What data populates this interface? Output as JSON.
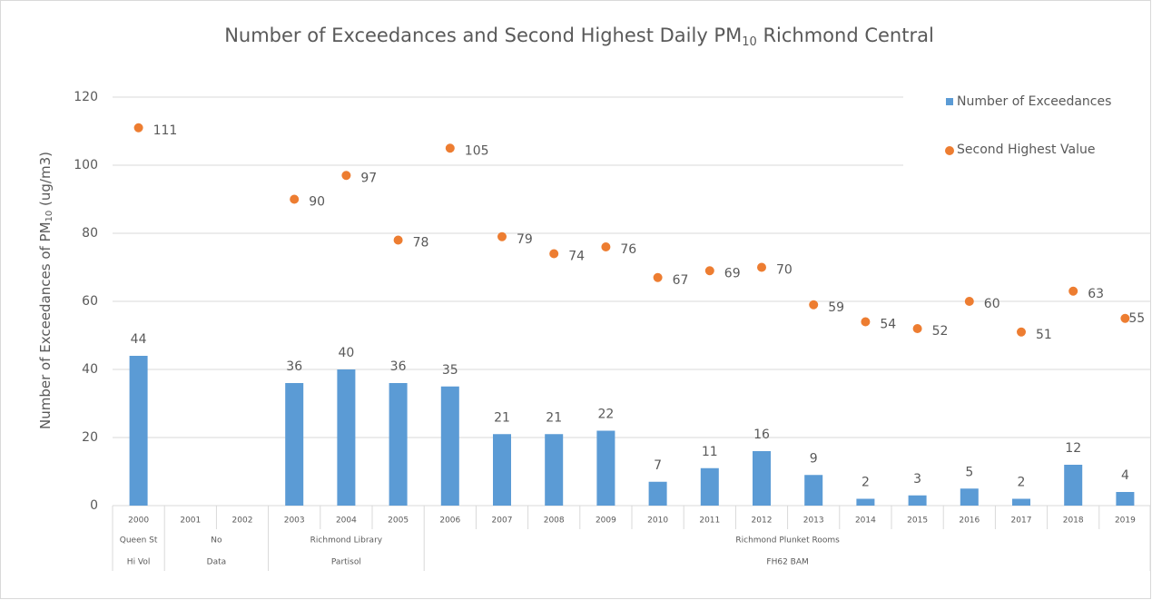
{
  "chart_data": {
    "type": "bar",
    "title": {
      "text": "Number of Exceedances and Second Highest Daily PM",
      "sub": "10",
      "tail": " Richmond Central"
    },
    "y_label": {
      "text": "Number of Exceedances of PM",
      "sub": "10",
      "tail": " (ug/m3)"
    },
    "categories": [
      "2000",
      "2001",
      "2002",
      "2003",
      "2004",
      "2005",
      "2006",
      "2007",
      "2008",
      "2009",
      "2010",
      "2011",
      "2012",
      "2013",
      "2014",
      "2015",
      "2016",
      "2017",
      "2018",
      "2019"
    ],
    "category_groups": [
      [
        {
          "label": "Queen St",
          "count": 1
        },
        {
          "label": "No",
          "count": 2
        },
        {
          "label": "Richmond Library",
          "count": 3
        },
        {
          "label": "Richmond Plunket Rooms",
          "count": 14
        }
      ],
      [
        {
          "label": "Hi Vol",
          "count": 1
        },
        {
          "label": "Data",
          "count": 2
        },
        {
          "label": "Partisol",
          "count": 3
        },
        {
          "label": "FH62 BAM",
          "count": 14
        }
      ]
    ],
    "series": [
      {
        "name": "Number of Exceedances",
        "type": "bar",
        "color": "#5b9bd5",
        "values": [
          44,
          null,
          null,
          36,
          40,
          36,
          35,
          21,
          21,
          22,
          7,
          11,
          16,
          9,
          2,
          3,
          5,
          2,
          12,
          4
        ]
      },
      {
        "name": "Second Highest Value",
        "type": "scatter",
        "color": "#ed7d31",
        "values": [
          111,
          null,
          null,
          90,
          97,
          78,
          105,
          79,
          74,
          76,
          67,
          69,
          70,
          59,
          54,
          52,
          60,
          51,
          63,
          55
        ]
      }
    ],
    "ylim": [
      0,
      120
    ],
    "yticks": [
      0,
      20,
      40,
      60,
      80,
      100,
      120
    ],
    "grid": true,
    "legend": "top-right"
  }
}
